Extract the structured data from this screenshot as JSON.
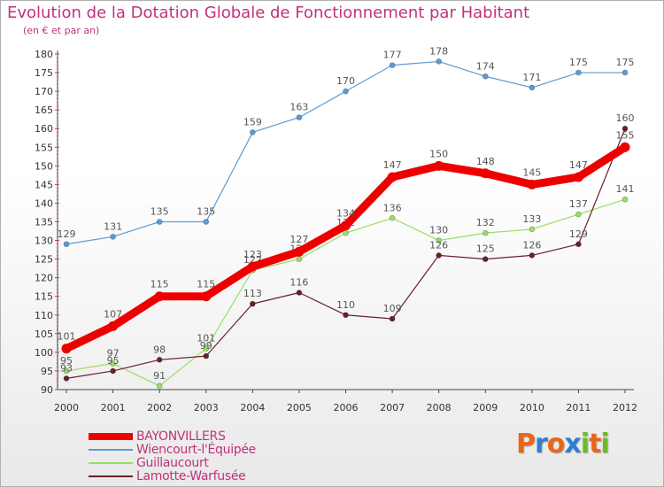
{
  "header": {
    "title": "Evolution de la Dotation Globale de Fonctionnement par Habitant",
    "subtitle": "(en € et par an)"
  },
  "logo": {
    "text": "Proxiti",
    "colors": [
      "#e8651c",
      "#2f7fd1",
      "#e8651c",
      "#2f7fd1",
      "#6fb82b",
      "#e8651c",
      "#6fb82b"
    ]
  },
  "colors": {
    "title": "#c0327a",
    "axis": "#444444",
    "tick_text": "#333333",
    "grid_tick": "#c0327a"
  },
  "chart_data": {
    "type": "line",
    "title": "Evolution de la Dotation Globale de Fonctionnement par Habitant",
    "subtitle": "(en € et par an)",
    "xlabel": "",
    "ylabel": "",
    "x": [
      "2000",
      "2001",
      "2002",
      "2003",
      "2004",
      "2005",
      "2006",
      "2007",
      "2008",
      "2009",
      "2010",
      "2011",
      "2012"
    ],
    "ylim": [
      90,
      180
    ],
    "yticks": [
      90,
      95,
      100,
      105,
      110,
      115,
      120,
      125,
      130,
      135,
      140,
      145,
      150,
      155,
      160,
      165,
      170,
      175,
      180
    ],
    "legend_position": "bottom-left",
    "series": [
      {
        "name": "Wiencourt-l'Équipée",
        "color": "#5b9bd5",
        "weight": "thin",
        "values": [
          129,
          131,
          135,
          135,
          159,
          163,
          170,
          177,
          178,
          174,
          171,
          175,
          175
        ],
        "labels": [
          "129",
          "131",
          "135",
          "135",
          "159",
          "163",
          "170",
          "177",
          "178",
          "174",
          "171",
          "175",
          "175"
        ]
      },
      {
        "name": "Guillaucourt",
        "color": "#99dd66",
        "weight": "thin",
        "values": [
          95,
          97,
          91,
          101,
          122,
          125,
          132,
          136,
          130,
          132,
          133,
          137,
          141
        ],
        "labels": [
          "95",
          "97",
          "91",
          "101",
          "122",
          "125",
          "132",
          "136",
          "130",
          "132",
          "133",
          "137",
          "141"
        ]
      },
      {
        "name": "Lamotte-Warfusée",
        "color": "#6b1f2a",
        "weight": "thin",
        "values": [
          93,
          95,
          98,
          99,
          113,
          116,
          110,
          109,
          126,
          125,
          126,
          129,
          160
        ],
        "labels": [
          "93",
          "95",
          "98",
          "99",
          "113",
          "116",
          "110",
          "109",
          "126",
          "125",
          "126",
          "129",
          "160"
        ]
      },
      {
        "name": "BAYONVILLERS",
        "color": "#ee0000",
        "weight": "bold",
        "values": [
          101,
          107,
          115,
          115,
          123,
          127,
          134,
          147,
          150,
          148,
          145,
          147,
          155
        ],
        "labels": [
          "101",
          "107",
          "115",
          "115",
          "123",
          "127",
          "134",
          "147",
          "150",
          "148",
          "145",
          "147",
          "155"
        ]
      }
    ],
    "legend": [
      "BAYONVILLERS",
      "Wiencourt-l'Équipée",
      "Guillaucourt",
      "Lamotte-Warfusée"
    ]
  }
}
